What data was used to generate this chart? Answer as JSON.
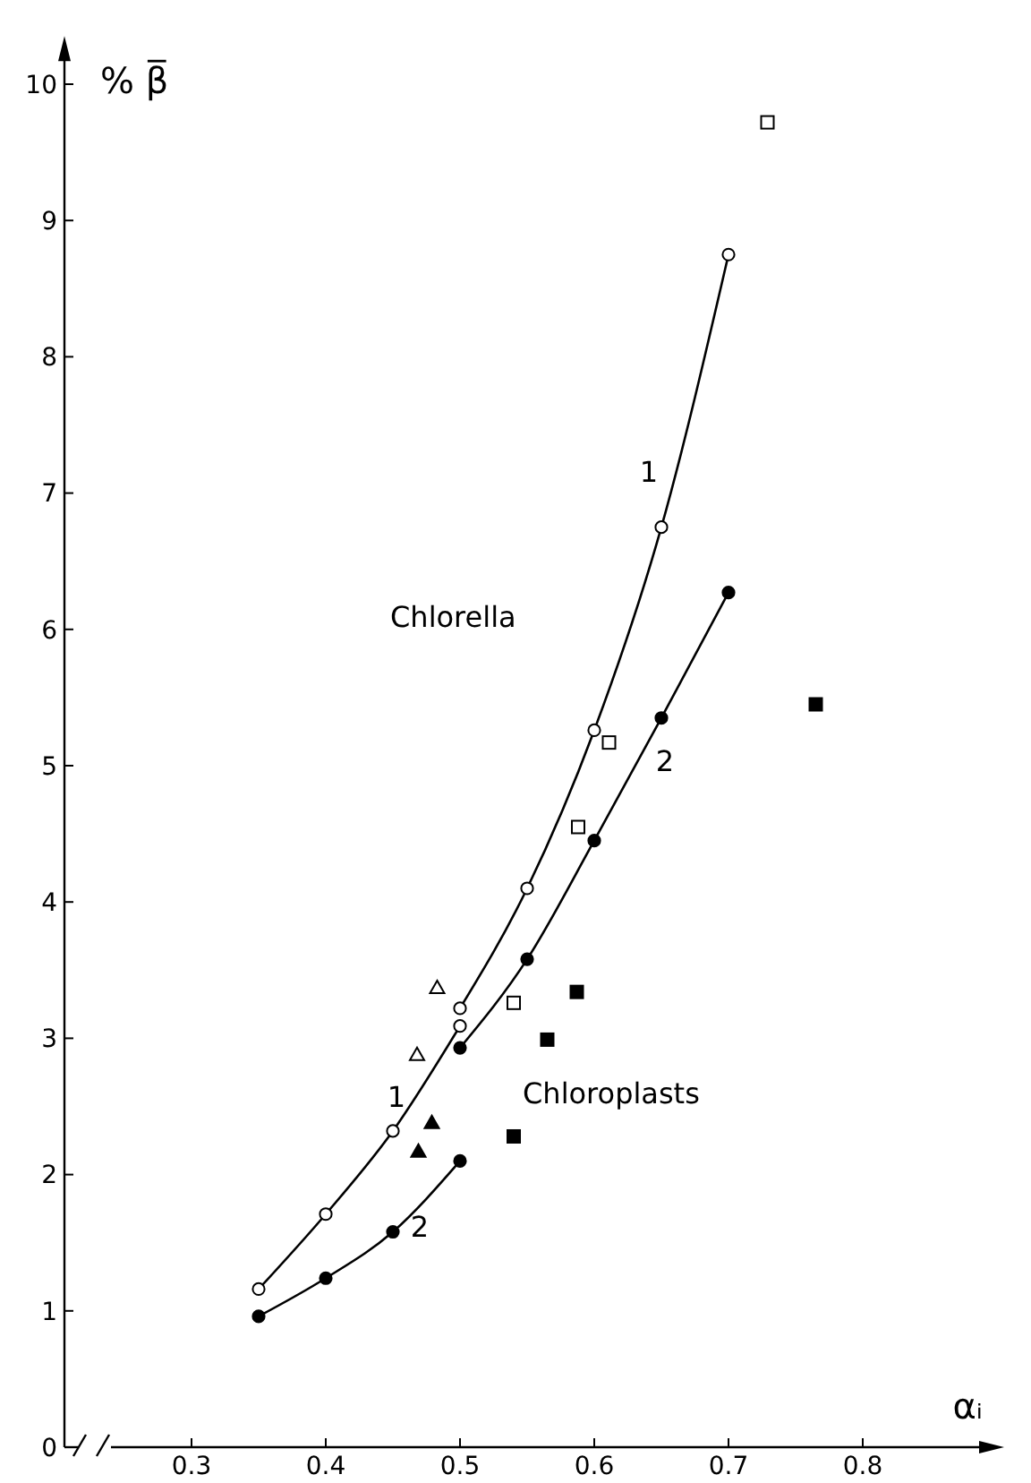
{
  "chart_data": {
    "type": "line",
    "xlabel": "αᵢ",
    "ylabel": "% β̅",
    "xlim": [
      0.24,
      0.9
    ],
    "xticks": [
      0.3,
      0.4,
      0.5,
      0.6,
      0.7,
      0.8
    ],
    "ylim": [
      0,
      10.3
    ],
    "yticks": [
      0,
      1,
      2,
      3,
      4,
      5,
      6,
      7,
      8,
      9,
      10
    ],
    "grid": false,
    "line_style": "solid",
    "series": [
      {
        "name": "1",
        "color": "#000000",
        "marker": "none",
        "x": [
          0.5,
          0.55,
          0.6,
          0.65,
          0.7
        ],
        "values": [
          3.22,
          4.1,
          5.26,
          6.75,
          8.75
        ]
      },
      {
        "name": "2",
        "color": "#000000",
        "marker": "none",
        "x": [
          0.5,
          0.55,
          0.6,
          0.65,
          0.7
        ],
        "values": [
          2.93,
          3.58,
          4.45,
          5.35,
          6.27
        ]
      },
      {
        "name": "1",
        "color": "#000000",
        "marker": "none",
        "x": [
          0.35,
          0.4,
          0.45,
          0.5
        ],
        "values": [
          1.16,
          1.71,
          2.32,
          3.09
        ]
      },
      {
        "name": "2",
        "color": "#000000",
        "marker": "none",
        "x": [
          0.35,
          0.4,
          0.45,
          0.5
        ],
        "values": [
          0.96,
          1.24,
          1.58,
          2.1
        ]
      },
      {
        "type": "scatter",
        "color": "#ffffff",
        "marker": "circle",
        "x": [
          0.5,
          0.55,
          0.6,
          0.65,
          0.7,
          0.35,
          0.4,
          0.45,
          0.5
        ],
        "values": [
          3.22,
          4.1,
          5.26,
          6.75,
          8.75,
          1.16,
          1.71,
          2.32,
          3.09
        ]
      },
      {
        "type": "scatter",
        "color": "#000000",
        "marker": "circle",
        "x": [
          0.5,
          0.55,
          0.6,
          0.65,
          0.7,
          0.35,
          0.4,
          0.45,
          0.5
        ],
        "values": [
          2.93,
          3.58,
          4.45,
          5.35,
          6.27,
          0.96,
          1.24,
          1.58,
          2.1
        ]
      },
      {
        "type": "scatter",
        "color": "#ffffff",
        "marker": "triangle",
        "x": [
          0.468,
          0.483
        ],
        "values": [
          2.88,
          3.37
        ]
      },
      {
        "type": "scatter",
        "color": "#000000",
        "marker": "triangle",
        "x": [
          0.469,
          0.479
        ],
        "values": [
          2.17,
          2.38
        ]
      },
      {
        "type": "scatter",
        "color": "#ffffff",
        "marker": "square",
        "x": [
          0.54,
          0.588,
          0.611,
          0.729
        ],
        "values": [
          3.26,
          4.55,
          5.17,
          9.72
        ]
      },
      {
        "type": "scatter",
        "color": "#000000",
        "marker": "square",
        "x": [
          0.54,
          0.565,
          0.587,
          0.765
        ],
        "values": [
          2.28,
          2.99,
          3.34,
          5.45
        ]
      }
    ],
    "annotations": [
      "Chlorella",
      "Chloroplasts"
    ]
  }
}
